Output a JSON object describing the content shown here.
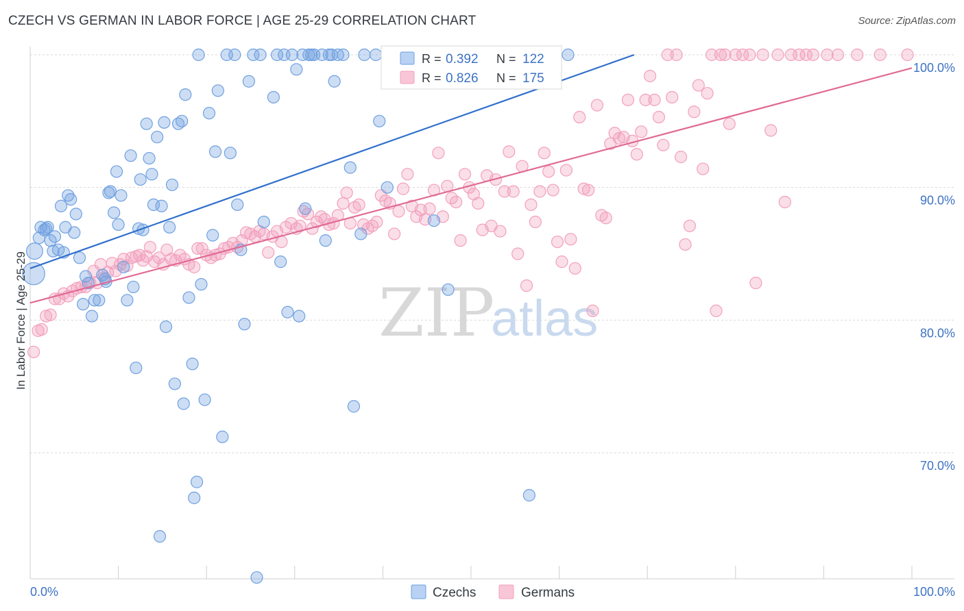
{
  "title": "CZECH VS GERMAN IN LABOR FORCE | AGE 25-29 CORRELATION CHART",
  "source": "Source: ZipAtlas.com",
  "watermark": {
    "zip": "ZIP",
    "atlas": "atlas"
  },
  "legend": {
    "rows": [
      {
        "r_label": "R = ",
        "r_value": "0.392",
        "n_label": "N = ",
        "n_value": "122"
      },
      {
        "r_label": "R = ",
        "r_value": "0.826",
        "n_label": "N = ",
        "n_value": "175"
      }
    ]
  },
  "chart_data": {
    "type": "scatter",
    "title": "CZECH VS GERMAN IN LABOR FORCE | AGE 25-29 CORRELATION CHART",
    "xlabel": "",
    "ylabel": "In Labor Force | Age 25-29",
    "xlim": [
      0,
      100
    ],
    "ylim": [
      60.5,
      101
    ],
    "x_tick_labels": [
      "0.0%",
      "100.0%"
    ],
    "y_ticks": [
      70,
      80,
      90,
      100
    ],
    "y_tick_labels": [
      "70.0%",
      "80.0%",
      "90.0%",
      "100.0%"
    ],
    "grid": true,
    "legend_position": "top-center",
    "colors": {
      "Czechs": "#6fa0e0",
      "Germans": "#f2a0bc",
      "Czechs_line": "#2f6fcc",
      "Germans_line": "#e06a94"
    },
    "series": [
      {
        "name": "Czechs",
        "R": 0.392,
        "N": 122,
        "trend": {
          "x": [
            0,
            68.5
          ],
          "y": [
            83.9,
            100.0
          ]
        },
        "points": [
          [
            0.4,
            83.5
          ],
          [
            0.5,
            85.2
          ],
          [
            1.0,
            86.2
          ],
          [
            1.2,
            87.0
          ],
          [
            1.6,
            86.8
          ],
          [
            1.8,
            86.9
          ],
          [
            2.0,
            87.0
          ],
          [
            2.3,
            86.0
          ],
          [
            2.6,
            85.2
          ],
          [
            2.8,
            86.3
          ],
          [
            3.2,
            85.3
          ],
          [
            3.5,
            88.6
          ],
          [
            3.8,
            85.1
          ],
          [
            4.0,
            87.0
          ],
          [
            4.3,
            89.4
          ],
          [
            4.6,
            89.1
          ],
          [
            5.0,
            86.6
          ],
          [
            5.2,
            88.0
          ],
          [
            5.6,
            84.7
          ],
          [
            6.0,
            81.2
          ],
          [
            6.3,
            83.3
          ],
          [
            6.6,
            82.8
          ],
          [
            7.0,
            80.3
          ],
          [
            7.3,
            81.5
          ],
          [
            7.8,
            81.5
          ],
          [
            8.2,
            83.4
          ],
          [
            8.5,
            83.1
          ],
          [
            8.6,
            82.9
          ],
          [
            8.9,
            89.6
          ],
          [
            9.1,
            89.7
          ],
          [
            9.5,
            88.1
          ],
          [
            9.8,
            91.2
          ],
          [
            10.0,
            87.2
          ],
          [
            10.3,
            89.4
          ],
          [
            10.6,
            84.0
          ],
          [
            11.0,
            81.5
          ],
          [
            11.4,
            92.4
          ],
          [
            11.7,
            82.5
          ],
          [
            12.0,
            76.4
          ],
          [
            12.3,
            86.9
          ],
          [
            12.5,
            90.6
          ],
          [
            12.8,
            86.8
          ],
          [
            13.2,
            94.8
          ],
          [
            13.5,
            92.2
          ],
          [
            13.8,
            91.0
          ],
          [
            14.0,
            88.7
          ],
          [
            14.4,
            93.8
          ],
          [
            14.7,
            63.7
          ],
          [
            14.9,
            88.6
          ],
          [
            15.2,
            94.9
          ],
          [
            15.4,
            79.5
          ],
          [
            15.8,
            87.0
          ],
          [
            16.1,
            90.2
          ],
          [
            16.4,
            75.2
          ],
          [
            16.8,
            94.8
          ],
          [
            17.2,
            95.0
          ],
          [
            17.4,
            73.7
          ],
          [
            17.6,
            97.0
          ],
          [
            18.0,
            81.7
          ],
          [
            18.4,
            76.7
          ],
          [
            18.9,
            67.8
          ],
          [
            18.6,
            66.6
          ],
          [
            19.1,
            100.0
          ],
          [
            19.4,
            82.7
          ],
          [
            19.8,
            74.0
          ],
          [
            20.3,
            95.6
          ],
          [
            20.7,
            86.4
          ],
          [
            21.0,
            92.7
          ],
          [
            21.3,
            97.3
          ],
          [
            21.8,
            71.2
          ],
          [
            22.3,
            100.0
          ],
          [
            22.7,
            92.6
          ],
          [
            23.2,
            100.0
          ],
          [
            23.5,
            88.7
          ],
          [
            23.9,
            85.3
          ],
          [
            24.3,
            79.7
          ],
          [
            24.8,
            98.0
          ],
          [
            25.3,
            100.0
          ],
          [
            25.7,
            60.6
          ],
          [
            26.1,
            100.0
          ],
          [
            26.5,
            87.4
          ],
          [
            27.6,
            96.8
          ],
          [
            28.0,
            100.0
          ],
          [
            28.4,
            84.4
          ],
          [
            28.8,
            100.0
          ],
          [
            29.2,
            80.6
          ],
          [
            29.7,
            100.0
          ],
          [
            30.2,
            98.9
          ],
          [
            30.5,
            80.3
          ],
          [
            30.9,
            100.0
          ],
          [
            31.2,
            88.4
          ],
          [
            31.6,
            100.0
          ],
          [
            31.9,
            100.0
          ],
          [
            32.2,
            100.0
          ],
          [
            33.1,
            100.0
          ],
          [
            33.5,
            86.0
          ],
          [
            33.9,
            100.0
          ],
          [
            34.2,
            100.0
          ],
          [
            34.5,
            98.0
          ],
          [
            34.9,
            100.0
          ],
          [
            35.5,
            100.0
          ],
          [
            36.3,
            91.5
          ],
          [
            36.7,
            73.5
          ],
          [
            37.5,
            86.5
          ],
          [
            37.9,
            100.0
          ],
          [
            39.2,
            100.0
          ],
          [
            39.6,
            95.0
          ],
          [
            40.5,
            90.0
          ],
          [
            41.1,
            100.0
          ],
          [
            41.6,
            100.0
          ],
          [
            42.3,
            100.0
          ],
          [
            43.1,
            100.0
          ],
          [
            43.6,
            100.0
          ],
          [
            44.6,
            100.0
          ],
          [
            45.8,
            87.5
          ],
          [
            45.2,
            100.0
          ],
          [
            46.4,
            100.0
          ],
          [
            47.4,
            82.3
          ],
          [
            48.5,
            100.0
          ],
          [
            56.6,
            66.8
          ],
          [
            57.8,
            100.0
          ],
          [
            61.0,
            100.0
          ]
        ]
      },
      {
        "name": "Germans",
        "R": 0.826,
        "N": 175,
        "trend": {
          "x": [
            0,
            100
          ],
          "y": [
            81.3,
            99.0
          ]
        },
        "points": [
          [
            0.4,
            77.6
          ],
          [
            0.9,
            79.2
          ],
          [
            1.3,
            79.3
          ],
          [
            1.8,
            80.3
          ],
          [
            2.3,
            80.4
          ],
          [
            2.8,
            81.6
          ],
          [
            3.3,
            81.6
          ],
          [
            3.8,
            82.0
          ],
          [
            4.3,
            81.8
          ],
          [
            4.8,
            82.2
          ],
          [
            5.3,
            82.4
          ],
          [
            5.8,
            82.5
          ],
          [
            6.3,
            82.5
          ],
          [
            6.8,
            82.8
          ],
          [
            7.2,
            83.7
          ],
          [
            7.6,
            82.8
          ],
          [
            8.0,
            84.2
          ],
          [
            8.4,
            83.2
          ],
          [
            8.8,
            83.6
          ],
          [
            9.3,
            84.3
          ],
          [
            9.7,
            83.7
          ],
          [
            10.2,
            84.2
          ],
          [
            10.6,
            84.6
          ],
          [
            11.0,
            84.1
          ],
          [
            11.5,
            84.7
          ],
          [
            12.0,
            84.8
          ],
          [
            12.4,
            84.9
          ],
          [
            12.8,
            84.5
          ],
          [
            13.2,
            84.8
          ],
          [
            13.6,
            85.5
          ],
          [
            14.1,
            84.4
          ],
          [
            14.6,
            84.7
          ],
          [
            15.1,
            84.2
          ],
          [
            15.5,
            85.3
          ],
          [
            16.0,
            84.6
          ],
          [
            16.5,
            84.5
          ],
          [
            17.0,
            84.9
          ],
          [
            17.5,
            84.6
          ],
          [
            18.0,
            84.2
          ],
          [
            18.6,
            84.0
          ],
          [
            19.0,
            85.4
          ],
          [
            19.5,
            85.4
          ],
          [
            20.0,
            84.9
          ],
          [
            20.5,
            84.7
          ],
          [
            21.0,
            84.9
          ],
          [
            21.5,
            85.0
          ],
          [
            22.0,
            85.4
          ],
          [
            22.5,
            85.5
          ],
          [
            23.0,
            85.8
          ],
          [
            23.5,
            85.5
          ],
          [
            24.0,
            86.0
          ],
          [
            24.5,
            86.6
          ],
          [
            25.0,
            86.5
          ],
          [
            25.5,
            86.3
          ],
          [
            26.0,
            86.7
          ],
          [
            26.5,
            86.5
          ],
          [
            27.0,
            85.1
          ],
          [
            27.5,
            86.3
          ],
          [
            28.0,
            86.7
          ],
          [
            28.5,
            85.9
          ],
          [
            29.0,
            87.0
          ],
          [
            29.6,
            87.3
          ],
          [
            30.2,
            86.9
          ],
          [
            30.6,
            87.1
          ],
          [
            31.0,
            88.2
          ],
          [
            31.5,
            88.0
          ],
          [
            32.0,
            86.9
          ],
          [
            32.5,
            87.4
          ],
          [
            33.0,
            87.8
          ],
          [
            33.4,
            87.6
          ],
          [
            33.9,
            87.2
          ],
          [
            34.4,
            87.3
          ],
          [
            34.9,
            87.9
          ],
          [
            35.5,
            88.8
          ],
          [
            35.9,
            89.6
          ],
          [
            36.3,
            87.3
          ],
          [
            36.8,
            88.5
          ],
          [
            37.3,
            88.7
          ],
          [
            37.8,
            87.2
          ],
          [
            38.3,
            86.9
          ],
          [
            38.8,
            87.1
          ],
          [
            39.3,
            87.4
          ],
          [
            39.8,
            89.4
          ],
          [
            40.3,
            89.0
          ],
          [
            40.8,
            88.8
          ],
          [
            41.3,
            86.5
          ],
          [
            41.8,
            88.2
          ],
          [
            42.3,
            89.9
          ],
          [
            42.8,
            91.0
          ],
          [
            43.3,
            88.6
          ],
          [
            43.8,
            87.8
          ],
          [
            44.3,
            88.3
          ],
          [
            44.8,
            87.6
          ],
          [
            45.3,
            88.4
          ],
          [
            45.8,
            89.8
          ],
          [
            46.3,
            92.6
          ],
          [
            46.8,
            87.8
          ],
          [
            47.3,
            90.1
          ],
          [
            47.8,
            89.2
          ],
          [
            48.3,
            88.9
          ],
          [
            48.8,
            86.0
          ],
          [
            49.3,
            91.0
          ],
          [
            49.8,
            90.0
          ],
          [
            50.3,
            89.5
          ],
          [
            50.8,
            88.8
          ],
          [
            51.3,
            86.8
          ],
          [
            51.8,
            90.9
          ],
          [
            52.3,
            87.1
          ],
          [
            52.8,
            90.6
          ],
          [
            53.3,
            86.7
          ],
          [
            53.8,
            89.7
          ],
          [
            54.3,
            92.7
          ],
          [
            54.8,
            89.7
          ],
          [
            55.3,
            85.0
          ],
          [
            55.8,
            91.6
          ],
          [
            56.3,
            82.6
          ],
          [
            56.8,
            88.7
          ],
          [
            57.3,
            87.4
          ],
          [
            57.8,
            89.7
          ],
          [
            58.3,
            92.6
          ],
          [
            58.8,
            91.2
          ],
          [
            59.3,
            89.8
          ],
          [
            59.8,
            85.9
          ],
          [
            60.3,
            84.4
          ],
          [
            60.8,
            91.3
          ],
          [
            61.3,
            86.1
          ],
          [
            61.8,
            83.9
          ],
          [
            62.3,
            95.3
          ],
          [
            62.8,
            89.9
          ],
          [
            63.3,
            89.8
          ],
          [
            63.8,
            80.7
          ],
          [
            64.3,
            96.2
          ],
          [
            64.8,
            87.9
          ],
          [
            65.3,
            87.7
          ],
          [
            65.8,
            93.3
          ],
          [
            66.3,
            94.1
          ],
          [
            66.8,
            93.7
          ],
          [
            67.3,
            93.8
          ],
          [
            67.8,
            96.6
          ],
          [
            68.3,
            93.5
          ],
          [
            68.8,
            92.5
          ],
          [
            69.3,
            94.2
          ],
          [
            69.8,
            96.6
          ],
          [
            70.3,
            98.4
          ],
          [
            70.8,
            96.6
          ],
          [
            71.3,
            95.3
          ],
          [
            71.8,
            93.2
          ],
          [
            72.3,
            100.0
          ],
          [
            72.8,
            96.8
          ],
          [
            73.3,
            100.0
          ],
          [
            73.8,
            92.3
          ],
          [
            74.3,
            85.7
          ],
          [
            74.8,
            87.1
          ],
          [
            75.3,
            95.7
          ],
          [
            75.8,
            97.7
          ],
          [
            76.3,
            91.4
          ],
          [
            76.8,
            97.1
          ],
          [
            77.3,
            100.0
          ],
          [
            77.8,
            80.7
          ],
          [
            78.3,
            100.0
          ],
          [
            78.8,
            100.0
          ],
          [
            79.3,
            94.8
          ],
          [
            80.0,
            100.0
          ],
          [
            80.8,
            100.0
          ],
          [
            81.6,
            100.0
          ],
          [
            82.3,
            82.8
          ],
          [
            83.1,
            100.0
          ],
          [
            84.0,
            94.3
          ],
          [
            84.8,
            100.0
          ],
          [
            85.6,
            88.9
          ],
          [
            86.3,
            100.0
          ],
          [
            87.2,
            100.0
          ],
          [
            88.0,
            100.0
          ],
          [
            88.8,
            100.0
          ],
          [
            90.4,
            100.0
          ],
          [
            91.6,
            100.0
          ],
          [
            93.8,
            100.0
          ],
          [
            96.4,
            100.0
          ],
          [
            99.5,
            100.0
          ]
        ]
      }
    ]
  }
}
